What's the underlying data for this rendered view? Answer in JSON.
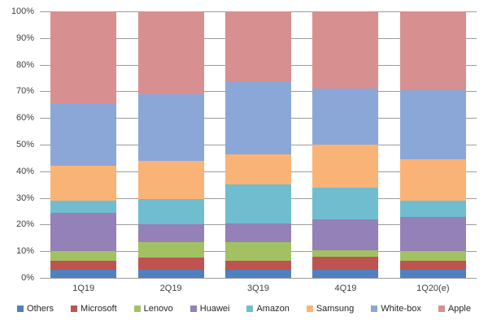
{
  "chart_data": {
    "type": "bar",
    "variant": "stacked-100-percent",
    "title": "",
    "xlabel": "",
    "ylabel": "",
    "grid": true,
    "legend_position": "bottom",
    "categories": [
      "1Q19",
      "2Q19",
      "3Q19",
      "4Q19",
      "1Q20(e)"
    ],
    "series": [
      {
        "name": "Others",
        "color": "#5080BE",
        "values": [
          3,
          3,
          3,
          3,
          3
        ]
      },
      {
        "name": "Microsoft",
        "color": "#BE5350",
        "values": [
          3.5,
          4.5,
          3.5,
          5,
          3.5
        ]
      },
      {
        "name": "Lenovo",
        "color": "#A2C162",
        "values": [
          3.5,
          6,
          7,
          2.5,
          3.5
        ]
      },
      {
        "name": "Huawei",
        "color": "#9381B7",
        "values": [
          14.5,
          6.5,
          7,
          11.5,
          13
        ]
      },
      {
        "name": "Amazon",
        "color": "#70BDCF",
        "values": [
          4.5,
          9.5,
          14.5,
          12,
          6
        ]
      },
      {
        "name": "Samsung",
        "color": "#FAB376",
        "values": [
          13,
          14.5,
          11.5,
          16,
          15.5
        ]
      },
      {
        "name": "White-box",
        "color": "#8BA7D7",
        "values": [
          23.5,
          25,
          27,
          21,
          26
        ]
      },
      {
        "name": "Apple",
        "color": "#D88F90",
        "values": [
          34.5,
          31,
          26.5,
          29,
          29.5
        ]
      }
    ],
    "y_axis": {
      "min": 0,
      "max": 100,
      "ticks": [
        "0%",
        "10%",
        "20%",
        "30%",
        "40%",
        "50%",
        "60%",
        "70%",
        "80%",
        "90%",
        "100%"
      ]
    }
  },
  "colors": {
    "background": "#FFFFFF",
    "gridline": "#9C9C9C",
    "axis_text": "#3F3F3F",
    "legend_text": "#262626"
  }
}
